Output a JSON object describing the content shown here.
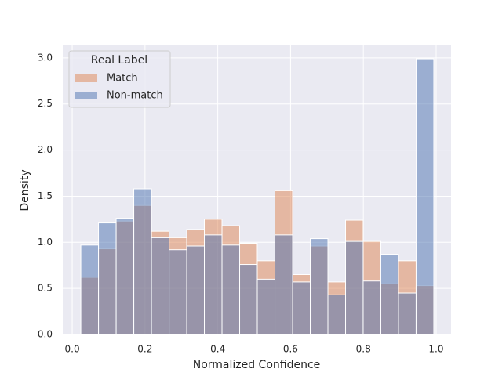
{
  "chart_data": {
    "type": "histogram",
    "xlabel": "Normalized Confidence",
    "ylabel": "Density",
    "bins": [
      0.0237,
      0.0722,
      0.1207,
      0.1692,
      0.2177,
      0.2662,
      0.3146,
      0.3631,
      0.4116,
      0.4601,
      0.5086,
      0.5571,
      0.6056,
      0.6541,
      0.7026,
      0.7511,
      0.7995,
      0.848,
      0.8965,
      0.945,
      0.9935
    ],
    "series": [
      {
        "name": "Match",
        "color": "#dd8452",
        "values": [
          0.62,
          0.93,
          1.23,
          1.4,
          1.12,
          1.05,
          1.14,
          1.25,
          1.18,
          0.99,
          0.8,
          1.56,
          0.65,
          0.96,
          0.57,
          1.24,
          1.01,
          0.55,
          0.8,
          0.53
        ]
      },
      {
        "name": "Non-match",
        "color": "#4c72b0",
        "values": [
          0.97,
          1.21,
          1.26,
          1.58,
          1.05,
          0.92,
          0.96,
          1.08,
          0.97,
          0.76,
          0.6,
          1.08,
          0.57,
          1.04,
          0.43,
          1.01,
          0.58,
          0.87,
          0.45,
          2.99
        ]
      }
    ],
    "legend_title": "Real Label",
    "legend": "upper left",
    "xlim": [
      -0.026,
      1.041
    ],
    "ylim": [
      0,
      3.135
    ],
    "xticks": [
      {
        "value": 0,
        "label": "0.0"
      },
      0.2,
      0.4,
      0.6,
      0.8,
      {
        "value": 1,
        "label": "1.0"
      }
    ],
    "yticks": [
      {
        "value": 0,
        "label": "0.0"
      },
      0.5,
      {
        "value": 1,
        "label": "1.0"
      },
      1.5,
      {
        "value": 2,
        "label": "2.0"
      },
      2.5,
      {
        "value": 3,
        "label": "3.0"
      }
    ],
    "grid": true
  }
}
